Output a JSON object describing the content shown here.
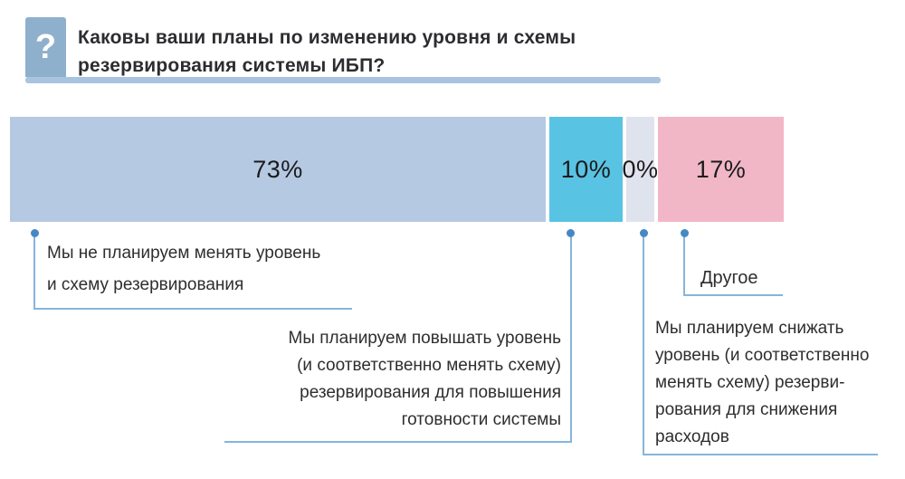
{
  "header": {
    "icon_glyph": "?",
    "icon_bg": "#8fb0cd",
    "underline_color": "#a9c4de",
    "title": "Каковы ваши планы по изменению уровня и схемы\nрезервирования системы ИБП?"
  },
  "chart_data": {
    "type": "bar",
    "stacked": true,
    "orientation": "horizontal",
    "unit": "%",
    "title": "Каковы ваши планы по изменению уровня и схемы резервирования системы ИБП?",
    "categories": [
      "Мы не планируем менять уровень и схему резервирования",
      "Мы планируем повышать уровень (и соответственно менять схему) резервирования для повышения готовности системы",
      "Мы планируем снижать уровень (и соответственно менять схему) резервирования для снижения расходов",
      "Другое"
    ],
    "values": [
      73,
      10,
      0,
      17
    ],
    "connector_line_color": "#85b5dc",
    "connector_dot_color": "#4589c4",
    "legend": "none",
    "axes": "none",
    "segments": [
      {
        "value": 73,
        "label": "73%",
        "color": "#b5c9e3",
        "annotation": "Мы не планируем менять уровень\nи схему резервирования"
      },
      {
        "value": 10,
        "label": "10%",
        "color": "#59c3e3",
        "annotation": "Мы планируем повышать уровень\n(и соответственно менять схему)\nрезервирования для повышения\nготовности системы"
      },
      {
        "value": 0,
        "label": "0%",
        "color": "#dfe3ee",
        "annotation": "Мы планируем снижать\nуровень (и соответственно\nменять схему) резерви-\nрования для снижения\nрасходов"
      },
      {
        "value": 17,
        "label": "17%",
        "color": "#f2b7c6",
        "annotation": "Другое"
      }
    ]
  }
}
